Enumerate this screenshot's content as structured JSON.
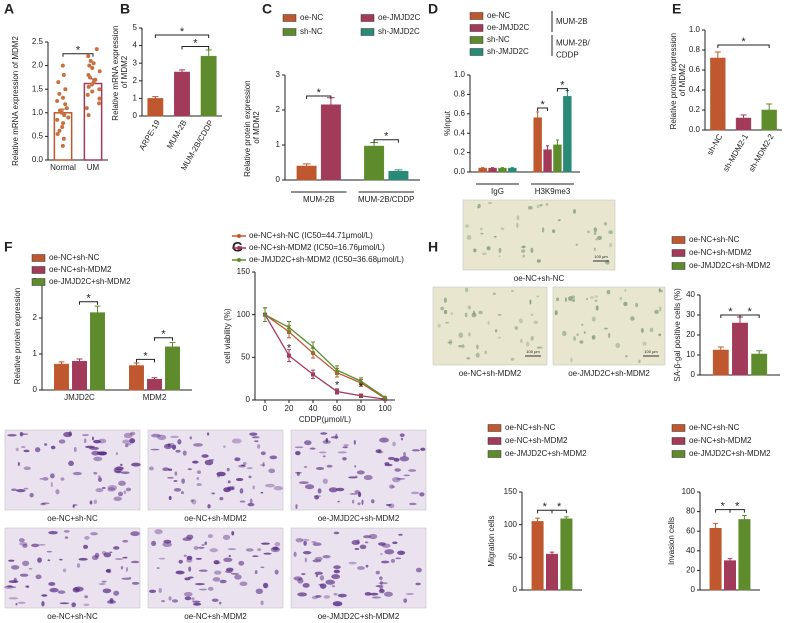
{
  "chart_data": [
    {
      "panel": "A",
      "type": "bar",
      "ylabel": "Relative mRNA expression of MDM2",
      "categories": [
        "Normal",
        "UM"
      ],
      "values": [
        1.0,
        1.62
      ],
      "errors": [
        0.08,
        0.1
      ],
      "colors": [
        "#c0582f",
        "#a23a5a"
      ],
      "fill": false,
      "points": [
        [
          0.3,
          0.45,
          0.55,
          0.62,
          0.7,
          0.78,
          0.85,
          0.9,
          0.95,
          1.0,
          1.05,
          1.1,
          1.18,
          1.25,
          1.32,
          1.4,
          1.5,
          1.65,
          1.8,
          2.0
        ],
        [
          0.95,
          1.1,
          1.2,
          1.3,
          1.38,
          1.45,
          1.5,
          1.55,
          1.6,
          1.65,
          1.7,
          1.75,
          1.8,
          1.88,
          1.95,
          2.0,
          2.05,
          2.1,
          2.2,
          2.35
        ]
      ],
      "ylim": [
        0,
        2.5
      ],
      "yticks": [
        {
          "value": 0,
          "label": "0.0"
        },
        0.5,
        {
          "value": 1,
          "label": "1.0"
        },
        1.5,
        {
          "value": 2,
          "label": "2.0"
        },
        2.5
      ],
      "annotations": [
        "*"
      ]
    },
    {
      "panel": "B",
      "type": "bar",
      "ylabel": "Relative mRNA expression of MDM2",
      "categories": [
        "ARPE-19",
        "MUM-2B",
        "MUM-2B/CDDP"
      ],
      "values": [
        1.0,
        2.5,
        3.4
      ],
      "errors": [
        0.1,
        0.12,
        0.35
      ],
      "colors": [
        "#c0582f",
        "#a23a5a",
        "#5e8c2c"
      ],
      "ylim": [
        0,
        5
      ],
      "yticks": [
        0,
        1,
        2,
        3,
        4,
        5
      ],
      "annotations": [
        "*",
        "*"
      ]
    },
    {
      "panel": "C",
      "type": "bar",
      "ylabel": "Relative protein expression of MDM2",
      "categories": [
        "MUM-2B",
        "MUM-2B/CDDP"
      ],
      "series": [
        {
          "name": "oe-NC",
          "color": "#c0582f",
          "values": [
            0.4,
            null
          ],
          "errors": [
            0.06,
            null
          ]
        },
        {
          "name": "oe-JMJD2C",
          "color": "#a23a5a",
          "values": [
            2.15,
            null
          ],
          "errors": [
            0.2,
            null
          ]
        },
        {
          "name": "sh-NC",
          "color": "#5e8c2c",
          "values": [
            null,
            0.97
          ],
          "errors": [
            null,
            0.1
          ]
        },
        {
          "name": "sh-JMJD2C",
          "color": "#2a8a78",
          "values": [
            null,
            0.25
          ],
          "errors": [
            null,
            0.04
          ]
        }
      ],
      "ylim": [
        0,
        3
      ],
      "yticks": [
        0,
        1,
        2,
        3
      ],
      "annotations": [
        "*",
        "*"
      ]
    },
    {
      "panel": "D",
      "type": "bar",
      "ylabel": "%Input",
      "categories": [
        "IgG",
        "H3K9me3"
      ],
      "series": [
        {
          "name": "oe-NC",
          "color": "#c0582f",
          "values": [
            0.04,
            0.56
          ],
          "errors": [
            0.005,
            0.06
          ]
        },
        {
          "name": "oe-JMJD2C",
          "color": "#a23a5a",
          "values": [
            0.04,
            0.23
          ],
          "errors": [
            0.005,
            0.04
          ]
        },
        {
          "name": "sh-NC",
          "color": "#5e8c2c",
          "values": [
            0.04,
            0.28
          ],
          "errors": [
            0.005,
            0.05
          ]
        },
        {
          "name": "sh-JMJD2C",
          "color": "#2a8a78",
          "values": [
            0.04,
            0.78
          ],
          "errors": [
            0.005,
            0.06
          ]
        }
      ],
      "legend_groups": [
        "MUM-2B",
        "MUM-2B/",
        "CDDP"
      ],
      "ylim": [
        0,
        1
      ],
      "yticks": [
        {
          "value": 0,
          "label": "0.0"
        },
        0.2,
        0.4,
        0.6,
        0.8,
        {
          "value": 1,
          "label": "1.0"
        }
      ],
      "annotations": [
        "*",
        "*"
      ]
    },
    {
      "panel": "E",
      "type": "bar",
      "ylabel": "Relative protein expression of MDM2",
      "categories": [
        "sh-NC",
        "sh-MDM2-1",
        "sh-MDM2-2"
      ],
      "values": [
        0.72,
        0.12,
        0.2
      ],
      "errors": [
        0.06,
        0.03,
        0.06
      ],
      "colors": [
        "#c0582f",
        "#a23a5a",
        "#5e8c2c"
      ],
      "ylim": [
        0,
        1
      ],
      "yticks": [
        {
          "value": 0,
          "label": "0.0"
        },
        0.2,
        0.4,
        0.6,
        0.8,
        {
          "value": 1,
          "label": "1.0"
        }
      ],
      "annotations": [
        "*"
      ]
    },
    {
      "panel": "F",
      "type": "bar",
      "ylabel": "Relative protein expression",
      "categories": [
        "JMJD2C",
        "MDM2"
      ],
      "series": [
        {
          "name": "oe-NC+sh-NC",
          "color": "#c0582f",
          "values": [
            0.72,
            0.68
          ],
          "errors": [
            0.06,
            0.07
          ]
        },
        {
          "name": "oe-NC+sh-MDM2",
          "color": "#a23a5a",
          "values": [
            0.8,
            0.3
          ],
          "errors": [
            0.06,
            0.04
          ]
        },
        {
          "name": "oe-JMJD2C+sh-MDM2",
          "color": "#5e8c2c",
          "values": [
            2.15,
            1.2
          ],
          "errors": [
            0.18,
            0.12
          ]
        }
      ],
      "ylim": [
        0,
        3
      ],
      "yticks": [
        0,
        1,
        2,
        3
      ],
      "annotations": [
        "*",
        "*",
        "*"
      ]
    },
    {
      "panel": "G",
      "type": "line",
      "ylabel": "cell viability (%)",
      "xlabel": "CDDP(μmol/L)",
      "x": [
        0,
        20,
        40,
        60,
        80,
        100
      ],
      "series": [
        {
          "name": "oe-NC+sh-NC  (IC50=44.71μmol/L)",
          "color": "#c0582f",
          "values": [
            100,
            80,
            55,
            32,
            20,
            2
          ],
          "errors": [
            8,
            7,
            6,
            5,
            4,
            1
          ]
        },
        {
          "name": "oe-NC+sh-MDM2 (IC50=16.76μmol/L)",
          "color": "#a23a5a",
          "values": [
            100,
            52,
            30,
            10,
            5,
            1
          ],
          "errors": [
            8,
            7,
            5,
            3,
            2,
            1
          ]
        },
        {
          "name": "oe-JMJD2C+sh-MDM2  (IC50=36.68μmol/L)",
          "color": "#5e8c2c",
          "values": [
            100,
            85,
            62,
            35,
            22,
            3
          ],
          "errors": [
            8,
            7,
            6,
            5,
            4,
            1
          ]
        }
      ],
      "xlim": [
        0,
        100
      ],
      "xticks": [
        0,
        20,
        40,
        60,
        80,
        100
      ],
      "ylim": [
        0,
        150
      ],
      "yticks": [
        0,
        50,
        100,
        150
      ],
      "annotations": [
        "*",
        "*",
        "*"
      ]
    },
    {
      "panel": "H",
      "type": "bar",
      "ylabel": "SA-β-gal positive cells (%)",
      "categories": [
        null
      ],
      "series": [
        {
          "name": "oe-NC+sh-NC",
          "color": "#c0582f",
          "values": [
            12.5
          ],
          "errors": [
            1.5
          ]
        },
        {
          "name": "oe-NC+sh-MDM2",
          "color": "#a23a5a",
          "values": [
            26
          ],
          "errors": [
            3
          ]
        },
        {
          "name": "oe-JMJD2C+sh-MDM2",
          "color": "#5e8c2c",
          "values": [
            10.5
          ],
          "errors": [
            1.6
          ]
        }
      ],
      "ylim": [
        0,
        40
      ],
      "yticks": [
        0,
        10,
        20,
        30,
        40
      ],
      "annotations": [
        "*",
        "*"
      ],
      "scale_bar": "100 μm",
      "images": [
        "oe-NC+sh-NC",
        "oe-NC+sh-MDM2",
        "oe-JMJD2C+sh-MDM2"
      ]
    },
    {
      "panel": "I",
      "type": "bar",
      "ylabel": "Migration cells",
      "categories": [
        null
      ],
      "series": [
        {
          "name": "oe-NC+sh-NC",
          "color": "#c0582f",
          "values": [
            105
          ],
          "errors": [
            5
          ]
        },
        {
          "name": "oe-NC+sh-MDM2",
          "color": "#a23a5a",
          "values": [
            55
          ],
          "errors": [
            3
          ]
        },
        {
          "name": "oe-JMJD2C+sh-MDM2",
          "color": "#5e8c2c",
          "values": [
            109
          ],
          "errors": [
            3
          ]
        }
      ],
      "ylim": [
        0,
        150
      ],
      "yticks": [
        0,
        50,
        100,
        150
      ],
      "annotations": [
        "*",
        "*"
      ],
      "images": [
        "oe-NC+sh-NC",
        "oe-NC+sh-MDM2",
        "oe-JMJD2C+sh-MDM2",
        "oe-NC+sh-NC",
        "oe-NC+sh-MDM2",
        "oe-JMJD2C+sh-MDM2"
      ]
    },
    {
      "type": "bar",
      "ylabel": "Invasion cells",
      "categories": [
        null
      ],
      "series": [
        {
          "name": "oe-NC+sh-NC",
          "color": "#c0582f",
          "values": [
            63
          ],
          "errors": [
            5
          ]
        },
        {
          "name": "oe-NC+sh-MDM2",
          "color": "#a23a5a",
          "values": [
            30
          ],
          "errors": [
            2
          ]
        },
        {
          "name": "oe-JMJD2C+sh-MDM2",
          "color": "#5e8c2c",
          "values": [
            72
          ],
          "errors": [
            4
          ]
        }
      ],
      "ylim": [
        0,
        100
      ],
      "yticks": [
        0,
        20,
        40,
        60,
        80,
        100
      ],
      "annotations": [
        "*",
        "*"
      ]
    }
  ]
}
